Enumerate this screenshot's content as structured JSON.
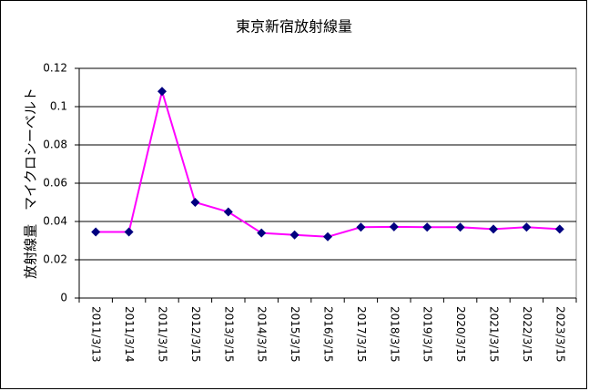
{
  "chart_data": {
    "type": "line",
    "title": "東京新宿放射線量",
    "y_label": "放射線量　マイクロシーベルト",
    "categories": [
      "2011/3/13",
      "2011/3/14",
      "2011/3/15",
      "2012/3/15",
      "2013/3/15",
      "2014/3/15",
      "2015/3/15",
      "2016/3/15",
      "2017/3/15",
      "2018/3/15",
      "2019/3/15",
      "2020/3/15",
      "2021/3/15",
      "2022/3/15",
      "2023/3/15"
    ],
    "values": [
      0.0345,
      0.0345,
      0.108,
      0.05,
      0.045,
      0.034,
      0.033,
      0.032,
      0.037,
      0.0372,
      0.037,
      0.037,
      0.036,
      0.037,
      0.036
    ],
    "color": "#ff00ff",
    "marker_color": "#000080",
    "ylim": [
      0,
      0.12
    ],
    "yticks": [
      0,
      0.02,
      0.04,
      0.06,
      0.08,
      0.1,
      0.12
    ],
    "grid": true
  }
}
